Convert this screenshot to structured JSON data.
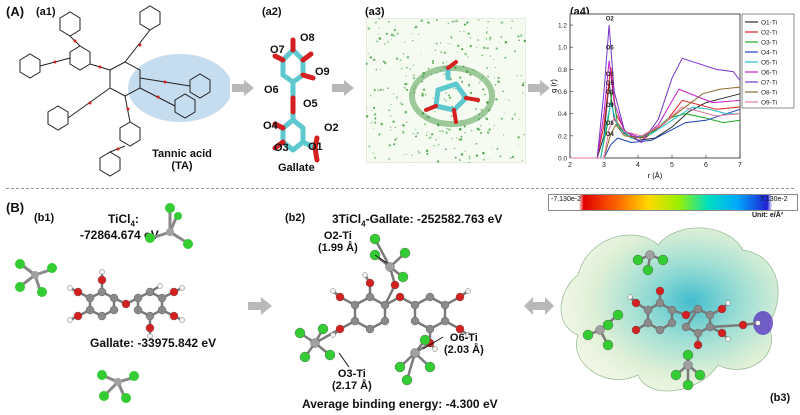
{
  "panel_A": {
    "label": "(A)"
  },
  "panel_B": {
    "label": "(B)"
  },
  "a1": {
    "label": "(a1)",
    "name_line1": "Tannic acid",
    "name_line2": "(TA)"
  },
  "a2": {
    "label": "(a2)",
    "name": "Gallate",
    "atoms": {
      "o7": "O7",
      "o8": "O8",
      "o9": "O9",
      "o6": "O6",
      "o5": "O5",
      "o4": "O4",
      "o3": "O3",
      "o2": "O2",
      "o1": "O1"
    }
  },
  "a3": {
    "label": "(a3)"
  },
  "a4": {
    "label": "(a4)"
  },
  "b1": {
    "label": "(b1)",
    "ticl4_title": "TiCl",
    "ticl4_sub": "4",
    "ticl4_colon": ":",
    "ticl4_energy": "-72864.674 eV",
    "gallate_energy": "Gallate: -33975.842 eV"
  },
  "b2": {
    "label": "(b2)",
    "title_pre": "3TiCl",
    "title_sub": "4",
    "title_post": "-Gallate: -252582.763 eV",
    "o2ti_name": "O2-Ti",
    "o2ti_dist": "(1.99 Å)",
    "o6ti_name": "O6-Ti",
    "o6ti_dist": "(2.03 Å)",
    "o3ti_name": "O3-Ti",
    "o3ti_dist": "(2.17 Å)",
    "avg": "Average binding energy:  -4.300 eV"
  },
  "b3": {
    "label": "(b3)",
    "scale_min": "-7.130e-2",
    "scale_max": "7.130e-2",
    "unit": "Unit: e/Å³"
  },
  "colors": {
    "carbon": "#8a8a8a",
    "oxygen": "#d42020",
    "hydrogen": "#f2f2f2",
    "chlorine": "#33cc33",
    "titanium": "#a0a0a0",
    "tube": "#5ec8cf",
    "blob": "#bcd6ec"
  },
  "chart_data": {
    "type": "line",
    "xlabel": "r (Å)",
    "ylabel": "g (r)",
    "xlim": [
      2,
      7
    ],
    "ylim": [
      0,
      1.3
    ],
    "xticks": [
      "2",
      "3",
      "4",
      "5",
      "6",
      "7"
    ],
    "yticks": [
      "0.0",
      "0.2",
      "0.4",
      "0.6",
      "0.8",
      "1.0",
      "1.2"
    ],
    "legend_position": "top-right",
    "annotations": [
      "O2",
      "O6",
      "O3",
      "O5",
      "O1",
      "O9",
      "O8",
      "O4"
    ],
    "series": [
      {
        "name": "O1-Ti",
        "color": "#2c2c2c",
        "points": [
          [
            2.0,
            0.0
          ],
          [
            2.8,
            0.0
          ],
          [
            3.0,
            0.2
          ],
          [
            3.15,
            0.68
          ],
          [
            3.3,
            0.35
          ],
          [
            3.6,
            0.22
          ],
          [
            4.0,
            0.16
          ],
          [
            4.5,
            0.18
          ],
          [
            5.0,
            0.28
          ],
          [
            5.5,
            0.42
          ],
          [
            6.0,
            0.5
          ],
          [
            6.5,
            0.54
          ],
          [
            7.0,
            0.58
          ]
        ]
      },
      {
        "name": "O2-Ti",
        "color": "#e02020",
        "points": [
          [
            2.0,
            0.0
          ],
          [
            2.8,
            0.0
          ],
          [
            3.0,
            0.3
          ],
          [
            3.2,
            0.82
          ],
          [
            3.35,
            0.4
          ],
          [
            3.7,
            0.2
          ],
          [
            4.2,
            0.18
          ],
          [
            4.8,
            0.32
          ],
          [
            5.3,
            0.52
          ],
          [
            5.8,
            0.48
          ],
          [
            6.3,
            0.44
          ],
          [
            7.0,
            0.46
          ]
        ]
      },
      {
        "name": "O3-Ti",
        "color": "#22aa22",
        "points": [
          [
            2.0,
            0.0
          ],
          [
            2.9,
            0.0
          ],
          [
            3.1,
            0.3
          ],
          [
            3.25,
            0.62
          ],
          [
            3.4,
            0.3
          ],
          [
            3.8,
            0.18
          ],
          [
            4.3,
            0.2
          ],
          [
            4.9,
            0.36
          ],
          [
            5.4,
            0.4
          ],
          [
            6.0,
            0.36
          ],
          [
            6.5,
            0.32
          ],
          [
            7.0,
            0.34
          ]
        ]
      },
      {
        "name": "O4-Ti",
        "color": "#1f3fbf",
        "points": [
          [
            2.0,
            0.0
          ],
          [
            3.0,
            0.0
          ],
          [
            3.2,
            0.12
          ],
          [
            3.4,
            0.18
          ],
          [
            3.8,
            0.14
          ],
          [
            4.4,
            0.16
          ],
          [
            4.9,
            0.24
          ],
          [
            5.4,
            0.32
          ],
          [
            6.0,
            0.34
          ],
          [
            6.6,
            0.4
          ],
          [
            7.0,
            0.44
          ]
        ]
      },
      {
        "name": "O5-Ti",
        "color": "#22bbcc",
        "points": [
          [
            2.0,
            0.0
          ],
          [
            2.9,
            0.0
          ],
          [
            3.1,
            0.35
          ],
          [
            3.2,
            0.5
          ],
          [
            3.4,
            0.28
          ],
          [
            3.8,
            0.18
          ],
          [
            4.4,
            0.22
          ],
          [
            5.0,
            0.34
          ],
          [
            5.6,
            0.46
          ],
          [
            6.1,
            0.44
          ],
          [
            6.6,
            0.4
          ],
          [
            7.0,
            0.4
          ]
        ]
      },
      {
        "name": "O6-Ti",
        "color": "#c81ec8",
        "points": [
          [
            2.0,
            0.0
          ],
          [
            2.8,
            0.0
          ],
          [
            3.0,
            0.4
          ],
          [
            3.15,
            0.88
          ],
          [
            3.3,
            0.5
          ],
          [
            3.6,
            0.24
          ],
          [
            4.1,
            0.18
          ],
          [
            4.6,
            0.3
          ],
          [
            5.2,
            0.62
          ],
          [
            5.7,
            0.56
          ],
          [
            6.2,
            0.5
          ],
          [
            7.0,
            0.52
          ]
        ]
      },
      {
        "name": "O7-Ti",
        "color": "#7733cc",
        "points": [
          [
            2.0,
            0.0
          ],
          [
            2.8,
            0.0
          ],
          [
            3.0,
            0.6
          ],
          [
            3.15,
            1.2
          ],
          [
            3.3,
            0.6
          ],
          [
            3.6,
            0.25
          ],
          [
            4.1,
            0.14
          ],
          [
            4.6,
            0.35
          ],
          [
            5.0,
            0.72
          ],
          [
            5.3,
            0.9
          ],
          [
            5.8,
            0.85
          ],
          [
            6.3,
            0.8
          ],
          [
            6.8,
            0.78
          ],
          [
            7.0,
            0.7
          ]
        ]
      },
      {
        "name": "O8-Ti",
        "color": "#8a6a2a",
        "points": [
          [
            2.0,
            0.0
          ],
          [
            3.0,
            0.0
          ],
          [
            3.2,
            0.22
          ],
          [
            3.35,
            0.3
          ],
          [
            3.6,
            0.2
          ],
          [
            4.1,
            0.18
          ],
          [
            4.7,
            0.3
          ],
          [
            5.3,
            0.44
          ],
          [
            5.9,
            0.58
          ],
          [
            6.4,
            0.62
          ],
          [
            7.0,
            0.64
          ]
        ]
      },
      {
        "name": "O9-Ti",
        "color": "#e07aa0",
        "points": [
          [
            2.0,
            0.0
          ],
          [
            3.0,
            0.0
          ],
          [
            3.15,
            0.26
          ],
          [
            3.3,
            0.36
          ],
          [
            3.6,
            0.24
          ],
          [
            4.1,
            0.2
          ],
          [
            4.7,
            0.3
          ],
          [
            5.3,
            0.46
          ],
          [
            5.8,
            0.42
          ],
          [
            6.3,
            0.38
          ],
          [
            7.0,
            0.4
          ]
        ]
      }
    ]
  }
}
